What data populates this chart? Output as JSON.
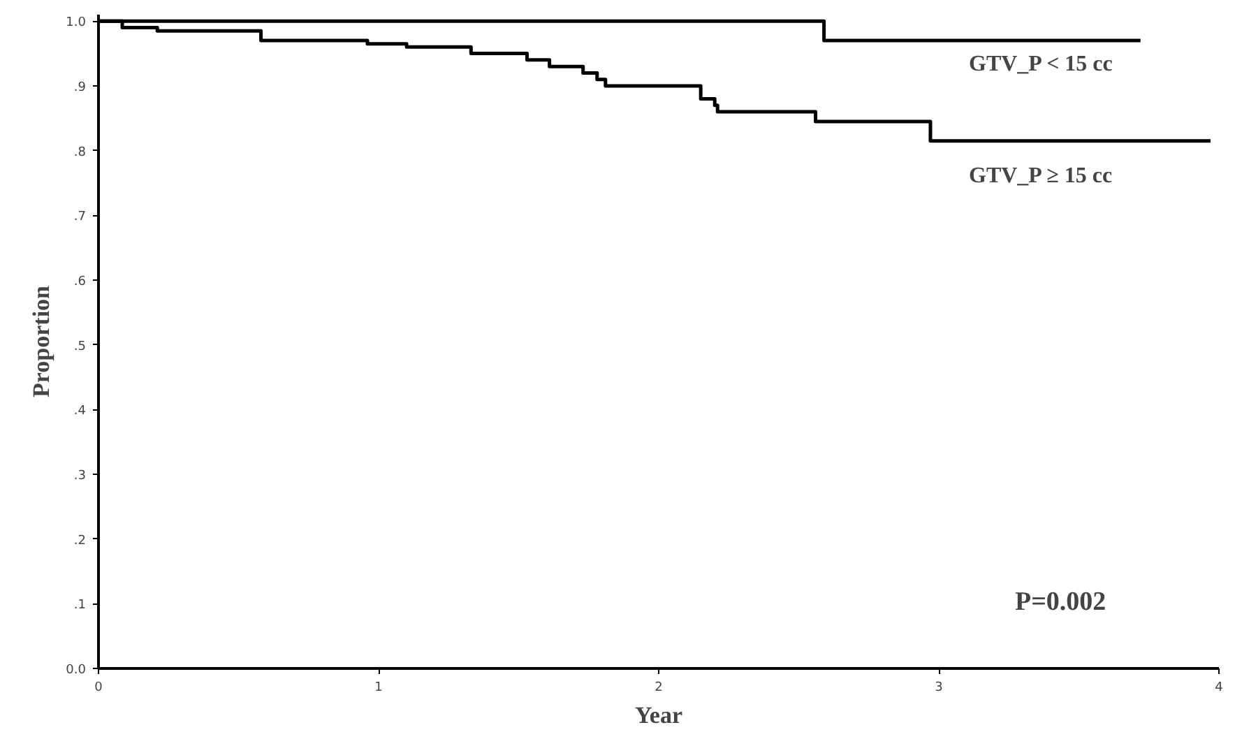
{
  "chart_data": {
    "type": "step",
    "xlabel": "Year",
    "ylabel": "Proportion",
    "xlim": [
      0,
      4
    ],
    "ylim": [
      0,
      1.01
    ],
    "xticks": [
      0,
      1,
      2,
      3,
      4
    ],
    "yticks": [
      {
        "value": 0,
        "label": "0.0"
      },
      {
        "value": 0.1,
        "label": ".1"
      },
      {
        "value": 0.2,
        "label": ".2"
      },
      {
        "value": 0.3,
        "label": ".3"
      },
      {
        "value": 0.4,
        "label": ".4"
      },
      {
        "value": 0.5,
        "label": ".5"
      },
      {
        "value": 0.6,
        "label": ".6"
      },
      {
        "value": 0.7,
        "label": ".7"
      },
      {
        "value": 0.8,
        "label": ".8"
      },
      {
        "value": 0.9,
        "label": ".9"
      },
      {
        "value": 1.0,
        "label": "1.0"
      }
    ],
    "grid": false,
    "legend": false,
    "series": [
      {
        "name": "GTV_P < 15 cc",
        "color": "#000000",
        "x": [
          0,
          2.59,
          3.72
        ],
        "values": [
          1.0,
          0.97,
          0.97
        ]
      },
      {
        "name": "GTV_P ≥ 15 cc",
        "color": "#000000",
        "x": [
          0,
          0.085,
          0.21,
          0.58,
          0.96,
          1.1,
          1.33,
          1.53,
          1.61,
          1.73,
          1.78,
          1.81,
          2.15,
          2.2,
          2.21,
          2.56,
          2.97,
          3.97
        ],
        "values": [
          1.0,
          0.99,
          0.985,
          0.97,
          0.965,
          0.96,
          0.95,
          0.94,
          0.93,
          0.92,
          0.91,
          0.9,
          0.88,
          0.87,
          0.86,
          0.845,
          0.815,
          0.815
        ]
      }
    ],
    "annotations": [
      "P=0.002"
    ]
  }
}
